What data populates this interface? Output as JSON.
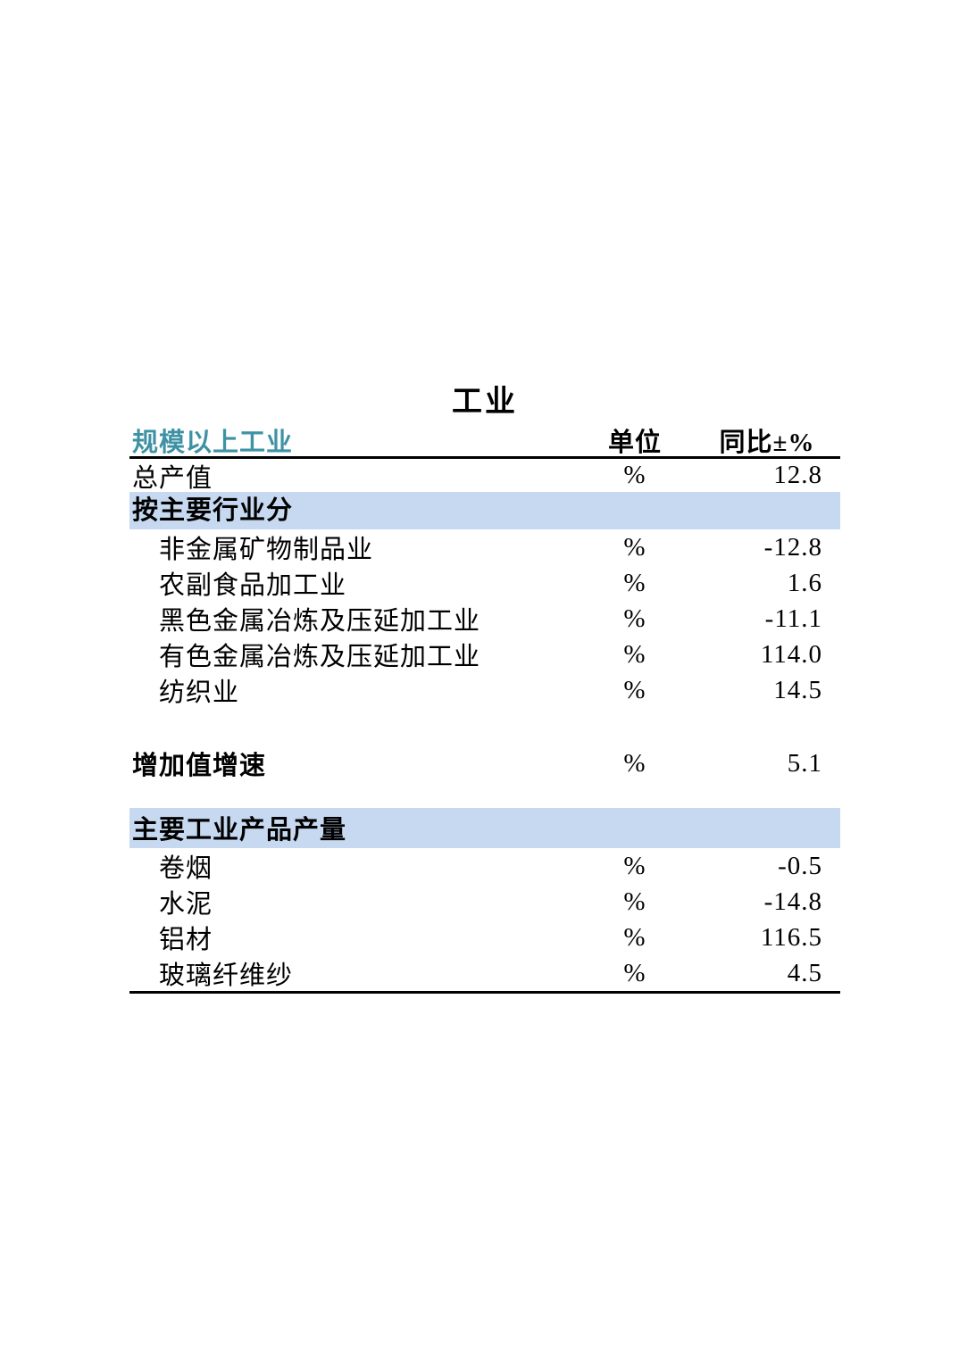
{
  "page_title": "工业",
  "colors": {
    "header_text": "#3E92A4",
    "section_band": "#C6D9F0",
    "rule": "#000000"
  },
  "table": {
    "header": {
      "name": "规模以上工业",
      "unit": "单位",
      "yoy": "同比±%"
    },
    "total_row": {
      "name": "总产值",
      "unit": "%",
      "value": "12.8"
    },
    "sections": [
      {
        "heading": "按主要行业分",
        "rows": [
          {
            "name": "非金属矿物制品业",
            "unit": "%",
            "value": "-12.8"
          },
          {
            "name": "农副食品加工业",
            "unit": "%",
            "value": "1.6"
          },
          {
            "name": "黑色金属冶炼及压延加工业",
            "unit": "%",
            "value": "-11.1"
          },
          {
            "name": "有色金属冶炼及压延加工业",
            "unit": "%",
            "value": "114.0"
          },
          {
            "name": "纺织业",
            "unit": "%",
            "value": "14.5"
          }
        ]
      }
    ],
    "value_added_row": {
      "name": "增加值增速",
      "unit": "%",
      "value": "5.1"
    },
    "products_section": {
      "heading": "主要工业产品产量",
      "rows": [
        {
          "name": "卷烟",
          "unit": "%",
          "value": "-0.5"
        },
        {
          "name": "水泥",
          "unit": "%",
          "value": "-14.8"
        },
        {
          "name": "铝材",
          "unit": "%",
          "value": "116.5"
        },
        {
          "name": "玻璃纤维纱",
          "unit": "%",
          "value": "4.5"
        }
      ]
    }
  }
}
